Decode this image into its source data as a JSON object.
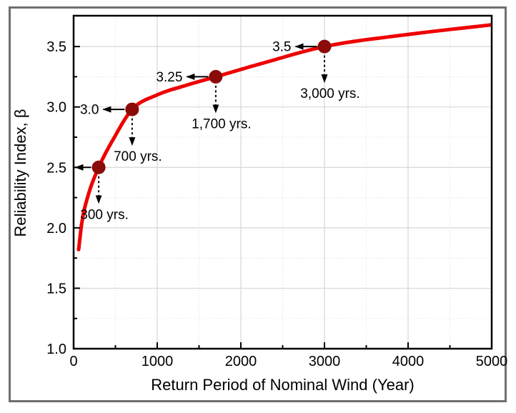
{
  "figure": {
    "frame_color": "#6f6f6f",
    "background_color": "#ffffff"
  },
  "chart_data": {
    "type": "line",
    "title": "",
    "xlabel": "Return Period of Nominal Wind (Year)",
    "ylabel": "Reliability Index, β",
    "xlim": [
      0,
      5000
    ],
    "ylim": [
      1.0,
      3.755
    ],
    "grid": {
      "major_on": true,
      "minor_on": true,
      "major_color": "#d7d7d7",
      "minor_color": "#e9e3dc"
    },
    "axis_color": "#000000",
    "text_color": "#000000",
    "x_axis": {
      "major_ticks": [
        {
          "value": 0,
          "label": "0"
        },
        {
          "value": 1000,
          "label": "1000"
        },
        {
          "value": 2000,
          "label": "2000"
        },
        {
          "value": 3000,
          "label": "3000"
        },
        {
          "value": 4000,
          "label": "4000"
        },
        {
          "value": 5000,
          "label": "5000"
        }
      ],
      "minor_ticks": [
        500,
        1500,
        2500,
        3500,
        4500
      ]
    },
    "y_axis": {
      "major_ticks": [
        {
          "value": 1.0,
          "label": "1.0"
        },
        {
          "value": 1.5,
          "label": "1.5"
        },
        {
          "value": 2.0,
          "label": "2.0"
        },
        {
          "value": 2.5,
          "label": "2.5"
        },
        {
          "value": 3.0,
          "label": "3.0"
        },
        {
          "value": 3.5,
          "label": "3.5"
        }
      ],
      "minor_ticks": [
        1.25,
        1.75,
        2.25,
        2.75,
        3.25
      ]
    },
    "series": [
      {
        "name": "reliability-index-curve",
        "color": "#ee0000",
        "stroke_width": 5,
        "x": [
          60,
          100,
          170,
          300,
          480,
          700,
          1000,
          1350,
          1700,
          2300,
          3000,
          4000,
          5000
        ],
        "y": [
          1.82,
          2.05,
          2.26,
          2.5,
          2.74,
          2.98,
          3.1,
          3.18,
          3.25,
          3.37,
          3.5,
          3.6,
          3.68
        ]
      }
    ],
    "markers": {
      "color": "#8b0a0a",
      "radius": 9.5,
      "points": [
        {
          "return_period": 300,
          "beta": 2.5,
          "beta_label": "2.5",
          "beta_label_on_axis": true,
          "period_label": "300 yrs."
        },
        {
          "return_period": 700,
          "beta": 2.98,
          "beta_label": "3.0",
          "beta_label_on_axis": false,
          "period_label": "700 yrs."
        },
        {
          "return_period": 1700,
          "beta": 3.25,
          "beta_label": "3.25",
          "beta_label_on_axis": false,
          "period_label": "1,700 yrs."
        },
        {
          "return_period": 3000,
          "beta": 3.5,
          "beta_label": "3.5",
          "beta_label_on_axis": false,
          "period_label": "3,000 yrs."
        }
      ]
    },
    "annotation_color": "#000000",
    "legend": {
      "visible": false
    }
  }
}
